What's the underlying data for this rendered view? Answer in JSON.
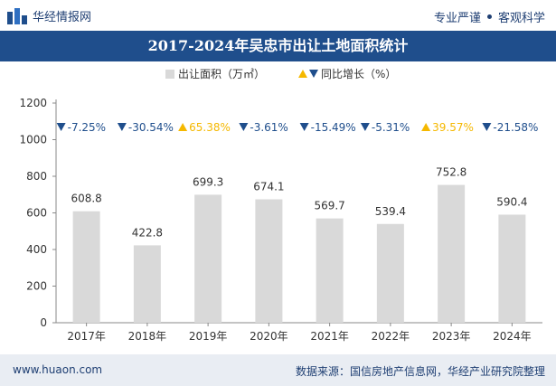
{
  "header": {
    "brand": "华经情报网",
    "tagline_left": "专业严谨",
    "tagline_right": "客观科学"
  },
  "footer": {
    "url": "www.huaon.com",
    "source": "数据来源：国信房地产信息网，华经产业研究院整理"
  },
  "chart_data": {
    "type": "bar",
    "title": "2017-2024年吴忠市出让土地面积统计",
    "categories": [
      "2017年",
      "2018年",
      "2019年",
      "2020年",
      "2021年",
      "2022年",
      "2023年",
      "2024年"
    ],
    "series": [
      {
        "name": "出让面积（万㎡）",
        "values": [
          608.8,
          422.8,
          699.3,
          674.1,
          569.7,
          539.4,
          752.8,
          590.4
        ]
      }
    ],
    "growth": {
      "name": "同比增长（%）",
      "values": [
        -7.25,
        -30.54,
        65.38,
        -3.61,
        -15.49,
        -5.31,
        39.57,
        -21.58
      ],
      "labels": [
        "-7.25%",
        "-30.54%",
        "65.38%",
        "-3.61%",
        "-15.49%",
        "-5.31%",
        "39.57%",
        "-21.58%"
      ]
    },
    "ylim": [
      0,
      1200
    ],
    "yticks": [
      0,
      200,
      400,
      600,
      800,
      1000,
      1200
    ],
    "legend_position": "top-center",
    "grid": false,
    "colors": {
      "bar": "#d9d9d9",
      "down": "#1f4e8c",
      "up": "#f5b800",
      "label": "#333333",
      "title_bg": "#1f4e8c"
    }
  }
}
